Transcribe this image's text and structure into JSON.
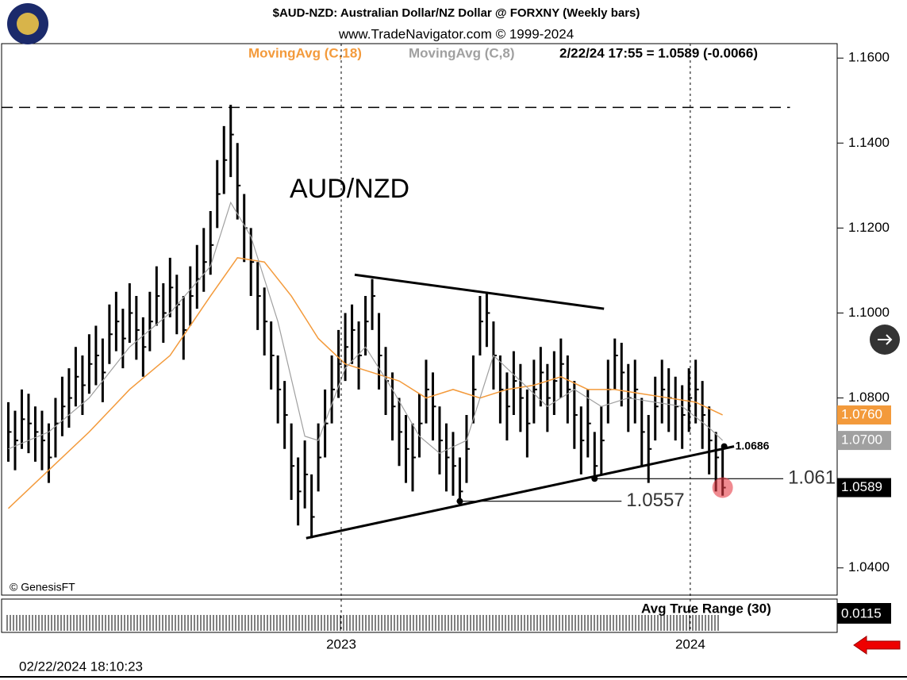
{
  "chart_data": {
    "type": "ohlc",
    "title": "$AUD-NZD:  Australian Dollar/NZ Dollar @ FORXNY  (Weekly bars)",
    "subtitle": "www.TradeNavigator.com © 1999-2024",
    "quote": "2/22/24 17:55 = 1.0589 (-0.0066)",
    "symbol_label": "AUD/NZD",
    "credit": "© GenesisFT",
    "timestamp": "02/22/2024 18:10:23",
    "color": "#000000",
    "high": [
      1.079,
      1.077,
      1.082,
      1.081,
      1.078,
      1.077,
      1.074,
      1.08,
      1.085,
      1.087,
      1.092,
      1.09,
      1.095,
      1.097,
      1.094,
      1.102,
      1.105,
      1.101,
      1.107,
      1.104,
      1.099,
      1.105,
      1.111,
      1.107,
      1.113,
      1.109,
      1.104,
      1.111,
      1.116,
      1.12,
      1.124,
      1.136,
      1.144,
      1.149,
      1.14,
      1.128,
      1.12,
      1.112,
      1.106,
      1.098,
      1.09,
      1.084,
      1.074,
      1.066,
      1.07,
      1.062,
      1.074,
      1.082,
      1.09,
      1.096,
      1.1,
      1.102,
      1.098,
      1.104,
      1.108,
      1.1,
      1.092,
      1.086,
      1.08,
      1.076,
      1.074,
      1.081,
      1.089,
      1.086,
      1.078,
      1.074,
      1.072,
      1.066,
      1.076,
      1.09,
      1.104,
      1.105,
      1.098,
      1.09,
      1.086,
      1.091,
      1.088,
      1.082,
      1.089,
      1.092,
      1.088,
      1.091,
      1.094,
      1.09,
      1.084,
      1.078,
      1.082,
      1.072,
      1.078,
      1.089,
      1.094,
      1.093,
      1.088,
      1.089,
      1.08,
      1.076,
      1.085,
      1.089,
      1.087,
      1.085,
      1.083,
      1.087,
      1.089,
      1.084,
      1.078,
      1.072,
      1.0686
    ],
    "low": [
      1.065,
      1.063,
      1.068,
      1.067,
      1.065,
      1.063,
      1.06,
      1.066,
      1.071,
      1.073,
      1.078,
      1.076,
      1.081,
      1.083,
      1.079,
      1.088,
      1.091,
      1.087,
      1.093,
      1.089,
      1.085,
      1.091,
      1.097,
      1.093,
      1.099,
      1.095,
      1.089,
      1.097,
      1.101,
      1.105,
      1.109,
      1.12,
      1.128,
      1.132,
      1.122,
      1.112,
      1.104,
      1.096,
      1.09,
      1.082,
      1.074,
      1.068,
      1.056,
      1.05,
      1.054,
      1.047,
      1.058,
      1.066,
      1.074,
      1.08,
      1.084,
      1.088,
      1.082,
      1.09,
      1.096,
      1.082,
      1.076,
      1.07,
      1.064,
      1.06,
      1.058,
      1.066,
      1.074,
      1.07,
      1.062,
      1.058,
      1.057,
      1.0557,
      1.06,
      1.074,
      1.09,
      1.092,
      1.082,
      1.074,
      1.07,
      1.076,
      1.072,
      1.066,
      1.074,
      1.078,
      1.072,
      1.076,
      1.08,
      1.074,
      1.068,
      1.062,
      1.066,
      1.061,
      1.062,
      1.074,
      1.082,
      1.078,
      1.072,
      1.074,
      1.064,
      1.06,
      1.07,
      1.074,
      1.072,
      1.07,
      1.068,
      1.072,
      1.074,
      1.068,
      1.062,
      1.058,
      1.057
    ],
    "close": [
      1.072,
      1.07,
      1.075,
      1.074,
      1.072,
      1.07,
      1.066,
      1.074,
      1.078,
      1.08,
      1.085,
      1.083,
      1.088,
      1.09,
      1.086,
      1.095,
      1.098,
      1.094,
      1.1,
      1.096,
      1.092,
      1.098,
      1.104,
      1.1,
      1.106,
      1.102,
      1.096,
      1.104,
      1.108,
      1.112,
      1.116,
      1.128,
      1.136,
      1.142,
      1.13,
      1.12,
      1.112,
      1.104,
      1.098,
      1.09,
      1.082,
      1.076,
      1.064,
      1.058,
      1.062,
      1.052,
      1.066,
      1.074,
      1.082,
      1.088,
      1.092,
      1.096,
      1.09,
      1.098,
      1.104,
      1.09,
      1.084,
      1.078,
      1.072,
      1.068,
      1.066,
      1.074,
      1.082,
      1.078,
      1.07,
      1.066,
      1.064,
      1.058,
      1.068,
      1.082,
      1.098,
      1.1,
      1.09,
      1.082,
      1.078,
      1.084,
      1.08,
      1.074,
      1.082,
      1.086,
      1.08,
      1.084,
      1.088,
      1.082,
      1.076,
      1.07,
      1.074,
      1.064,
      1.07,
      1.082,
      1.09,
      1.086,
      1.08,
      1.082,
      1.072,
      1.068,
      1.078,
      1.082,
      1.08,
      1.078,
      1.076,
      1.08,
      1.082,
      1.076,
      1.07,
      1.066,
      1.0589
    ],
    "series": [
      {
        "name": "MovingAvg (C,18)",
        "color": "#f39a3b",
        "x": [
          0,
          6,
          12,
          18,
          24,
          30,
          34,
          38,
          42,
          46,
          50,
          54,
          58,
          62,
          66,
          70,
          74,
          78,
          82,
          86,
          90,
          94,
          98,
          102,
          106
        ],
        "values": [
          1.054,
          1.063,
          1.072,
          1.082,
          1.09,
          1.104,
          1.113,
          1.112,
          1.104,
          1.094,
          1.088,
          1.086,
          1.084,
          1.08,
          1.082,
          1.08,
          1.082,
          1.083,
          1.085,
          1.082,
          1.082,
          1.081,
          1.08,
          1.079,
          1.076
        ]
      },
      {
        "name": "MovingAvg (C,8)",
        "color": "#a0a0a0",
        "x": [
          0,
          6,
          12,
          18,
          24,
          30,
          33,
          36,
          40,
          44,
          46,
          50,
          53,
          57,
          61,
          64,
          68,
          72,
          76,
          80,
          84,
          88,
          92,
          96,
          100,
          104,
          106
        ],
        "values": [
          1.068,
          1.072,
          1.08,
          1.092,
          1.1,
          1.111,
          1.126,
          1.118,
          1.098,
          1.071,
          1.07,
          1.087,
          1.092,
          1.082,
          1.071,
          1.067,
          1.07,
          1.09,
          1.084,
          1.078,
          1.082,
          1.078,
          1.08,
          1.079,
          1.078,
          1.073,
          1.07
        ]
      }
    ],
    "last_tags": [
      {
        "value": 1.076,
        "label": "1.0760",
        "color": "#f39a3b"
      },
      {
        "value": 1.07,
        "label": "1.0700",
        "color": "#a0a0a0"
      },
      {
        "value": 1.0589,
        "label": "1.0589",
        "color": "#000000"
      }
    ],
    "trendlines": [
      {
        "x": [
          51.4,
          88.4
        ],
        "y": [
          1.109,
          1.101
        ]
      },
      {
        "x": [
          44.2,
          107.7
        ],
        "y": [
          1.047,
          1.0686
        ]
      }
    ],
    "high_line": {
      "value": 1.1484,
      "x": [
        -1,
        116
      ]
    },
    "levels": [
      {
        "label": "1.0557",
        "value": 1.0557,
        "x": [
          67,
          91
        ]
      },
      {
        "label": "1.061",
        "value": 1.061,
        "x": [
          87,
          115
        ]
      }
    ],
    "point_label": {
      "label": "1.0686",
      "value": 1.0686,
      "x": 106
    },
    "atr": {
      "label": "Avg True Range (30)",
      "value": 0.0115,
      "value_label": "0.0115"
    },
    "xlim": [
      -1,
      123
    ],
    "xticks": [
      {
        "value": 49.4,
        "label": "2023"
      },
      {
        "value": 101.2,
        "label": "2024"
      }
    ],
    "ylim": [
      1.0336,
      1.1634
    ],
    "yticks": [
      {
        "value": 1.16,
        "label": "1.1600"
      },
      {
        "value": 1.14,
        "label": "1.1400"
      },
      {
        "value": 1.12,
        "label": "1.1200"
      },
      {
        "value": 1.1,
        "label": "1.1000"
      },
      {
        "value": 1.08,
        "label": "1.0800"
      },
      {
        "value": 1.04,
        "label": "1.0400"
      }
    ]
  }
}
